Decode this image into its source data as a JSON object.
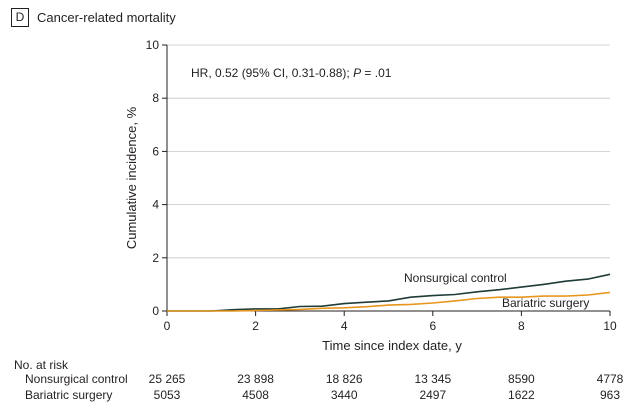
{
  "panel": {
    "badge": "D",
    "title": "Cancer-related mortality"
  },
  "chart_data": {
    "type": "line",
    "xlabel": "Time since index date, y",
    "ylabel": "Cumulative incidence, %",
    "xlim": [
      0,
      10
    ],
    "ylim": [
      0,
      10
    ],
    "xticks": [
      0,
      2,
      4,
      6,
      8,
      10
    ],
    "yticks": [
      0,
      2,
      4,
      6,
      8,
      10
    ],
    "grid": "horizontal",
    "annotation": {
      "pre": "HR, 0.52 (95% CI, 0.31-0.88); ",
      "p_symbol": "P",
      "post": " = .01"
    },
    "series": [
      {
        "name": "Nonsurgical control",
        "color": "#1f3c38",
        "x": [
          0,
          1.0,
          1.5,
          2.0,
          2.5,
          3.0,
          3.5,
          4.0,
          4.5,
          5.0,
          5.5,
          6.0,
          6.5,
          7.0,
          7.5,
          8.0,
          8.5,
          9.0,
          9.5,
          10.0
        ],
        "y": [
          0,
          0,
          0.05,
          0.08,
          0.08,
          0.17,
          0.18,
          0.28,
          0.33,
          0.38,
          0.52,
          0.58,
          0.62,
          0.72,
          0.8,
          0.9,
          1.0,
          1.12,
          1.2,
          1.38
        ]
      },
      {
        "name": "Bariatric surgery",
        "color": "#e8961e",
        "x": [
          0,
          1.0,
          1.5,
          2.0,
          2.5,
          3.0,
          3.5,
          4.0,
          4.5,
          5.0,
          5.5,
          6.0,
          6.5,
          7.0,
          7.5,
          8.0,
          8.5,
          9.0,
          9.5,
          10.0
        ],
        "y": [
          0,
          0,
          0,
          0.02,
          0.04,
          0.06,
          0.1,
          0.12,
          0.16,
          0.22,
          0.25,
          0.3,
          0.38,
          0.47,
          0.52,
          0.52,
          0.56,
          0.56,
          0.6,
          0.7
        ]
      }
    ]
  },
  "risk_table": {
    "header": "No. at risk",
    "rows": [
      {
        "label": "Nonsurgical control",
        "values": [
          "25 265",
          "23 898",
          "18 826",
          "13 345",
          "8590",
          "4778"
        ]
      },
      {
        "label": "Bariatric surgery",
        "values": [
          "5053",
          "4508",
          "3440",
          "2497",
          "1622",
          "963"
        ]
      }
    ]
  }
}
